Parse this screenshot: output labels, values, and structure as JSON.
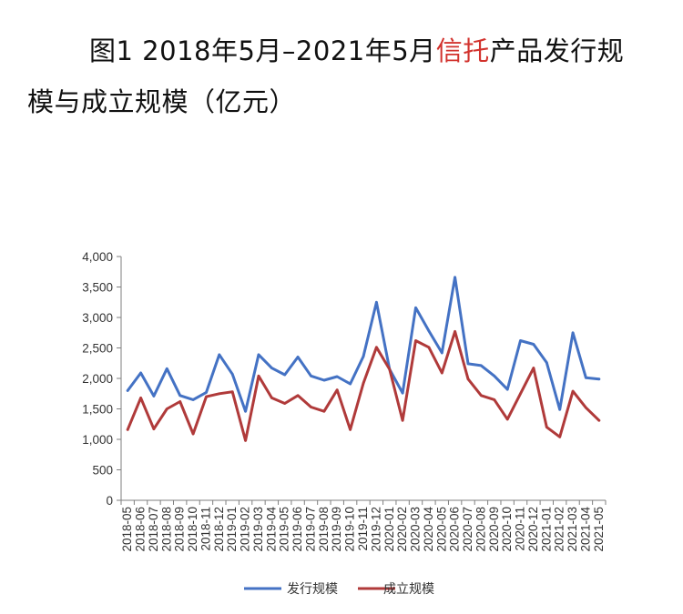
{
  "title": {
    "prefix": "图1 2018年5月–2021年5月",
    "highlight": "信托",
    "suffix": "产品发行规",
    "line2": "模与成立规模（亿元）"
  },
  "colors": {
    "highlight": "#d2322d",
    "issue": "#4472c4",
    "established": "#b03a3a"
  },
  "chart_data": {
    "type": "line",
    "title": "图1 2018年5月–2021年5月信托产品发行规模与成立规模（亿元）",
    "ylim": [
      0,
      4000
    ],
    "yticks": [
      0,
      500,
      1000,
      1500,
      2000,
      2500,
      3000,
      3500,
      4000
    ],
    "ytick_labels": [
      "0",
      "500",
      "1,000",
      "1,500",
      "2,000",
      "2,500",
      "3,000",
      "3,500",
      "4,000"
    ],
    "grid": false,
    "legend": "bottom",
    "x": [
      "2018-05",
      "2018-06",
      "2018-07",
      "2018-08",
      "2018-09",
      "2018-10",
      "2018-11",
      "2018-12",
      "2019-01",
      "2019-02",
      "2019-03",
      "2019-04",
      "2019-05",
      "2019-06",
      "2019-07",
      "2019-08",
      "2019-09",
      "2019-10",
      "2019-11",
      "2019-12",
      "2020-01",
      "2020-02",
      "2020-03",
      "2020-04",
      "2020-05",
      "2020-06",
      "2020-07",
      "2020-08",
      "2020-09",
      "2020-10",
      "2020-11",
      "2020-12",
      "2021-01",
      "2021-02",
      "2021-03",
      "2021-04",
      "2021-05"
    ],
    "xtick_labels": [
      "2018-05",
      "2018-06",
      "2018-07",
      "2018-08",
      "2018-09",
      "2018-10",
      "2018-11",
      "2018-12",
      "2019-01",
      "2019-02",
      "2019-03",
      "2019-04",
      "2019-05",
      "2019-06",
      "2019-07",
      "2019-08",
      "2019-09",
      "2019-10",
      "2019-11",
      "2019-12",
      "2020-01",
      "2020-02",
      "2020-03",
      "2020-04",
      "2020-05",
      "2020-06",
      "2020-07",
      "2020-08",
      "2020-09",
      "2020-10",
      "2020-11",
      "2020-12",
      "2021-01",
      "2021-02",
      "2021-03",
      "2021-04",
      "2021-05"
    ],
    "series": [
      {
        "name": "发行规模",
        "color": "#4472c4",
        "values": [
          1800,
          2090,
          1710,
          2160,
          1720,
          1650,
          1770,
          2390,
          2070,
          1460,
          2390,
          2170,
          2060,
          2350,
          2040,
          1970,
          2030,
          1910,
          2360,
          3250,
          2150,
          1760,
          3160,
          2780,
          2420,
          3660,
          2240,
          2210,
          2040,
          1820,
          2620,
          2560,
          2260,
          1490,
          2750,
          2010,
          1990
        ]
      },
      {
        "name": "成立规模",
        "color": "#b03a3a",
        "values": [
          1160,
          1680,
          1170,
          1500,
          1620,
          1090,
          1700,
          1750,
          1780,
          980,
          2040,
          1680,
          1590,
          1720,
          1530,
          1460,
          1810,
          1160,
          1920,
          2510,
          2150,
          1310,
          2620,
          2510,
          2090,
          2770,
          1990,
          1720,
          1650,
          1330,
          1750,
          2170,
          1200,
          1040,
          1790,
          1520,
          1310
        ]
      }
    ]
  }
}
